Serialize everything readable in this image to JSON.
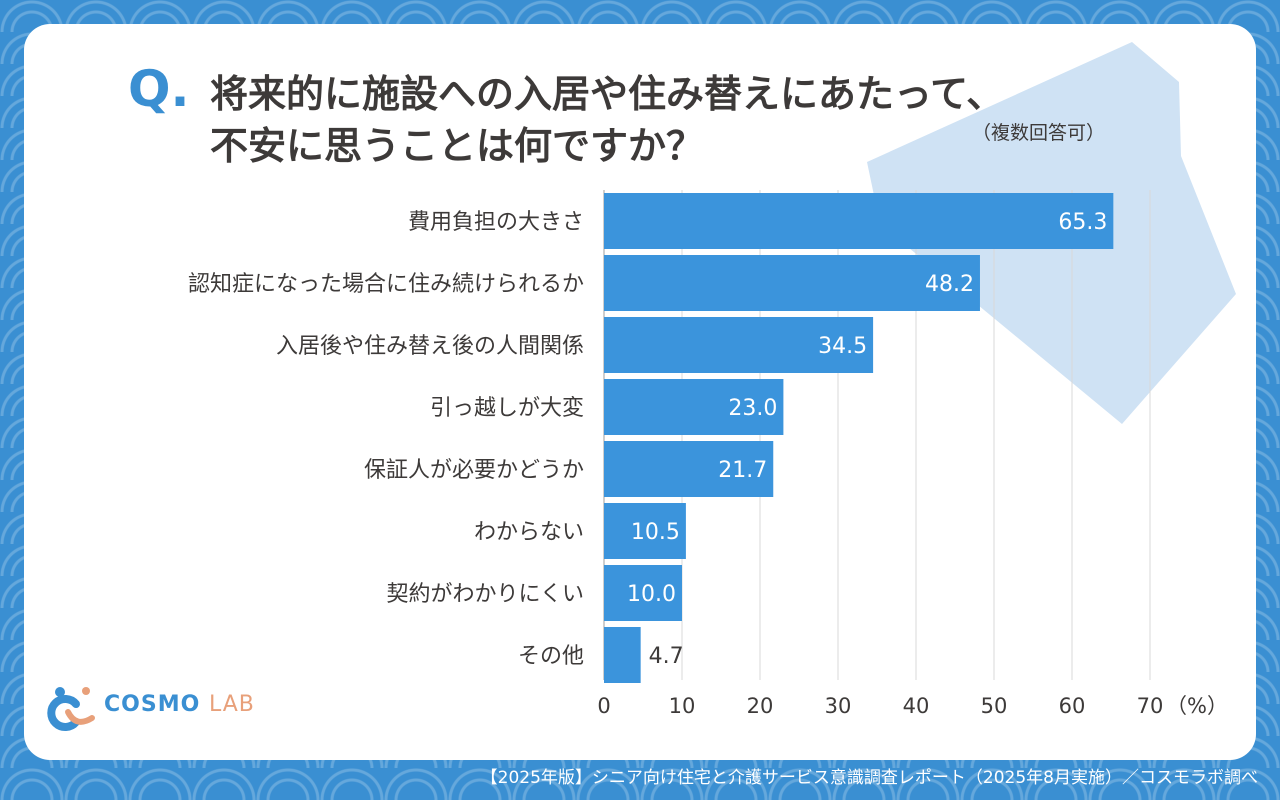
{
  "title": {
    "q_mark": "Q.",
    "line1": "将来的に施設への入居や住み替えにあたって、",
    "line2": "不安に思うことは何ですか？",
    "note": "（複数回答可）"
  },
  "chart_data": {
    "type": "bar",
    "orientation": "horizontal",
    "categories": [
      "費用負担の大きさ",
      "認知症になった場合に住み続けられるか",
      "入居後や住み替え後の人間関係",
      "引っ越しが大変",
      "保証人が必要かどうか",
      "わからない",
      "契約がわかりにくい",
      "その他"
    ],
    "values": [
      65.3,
      48.2,
      34.5,
      23.0,
      21.7,
      10.5,
      10.0,
      4.7
    ],
    "value_labels": [
      "65.3",
      "48.2",
      "34.5",
      "23.0",
      "21.7",
      "10.5",
      "10.0",
      "4.7"
    ],
    "xlim": [
      0,
      70
    ],
    "xticks": [
      "0",
      "10",
      "20",
      "30",
      "40",
      "50",
      "60",
      "70"
    ],
    "unit": "（%）",
    "grid": true
  },
  "colors": {
    "bar": "#3b94dc",
    "grid": "#d8d8d8",
    "text": "#3d3a39",
    "accent": "#3a8fd2",
    "house": "#cfe2f4"
  },
  "logo": {
    "text_main": "COSMO",
    "text_sub": "LAB"
  },
  "footer": {
    "text": "【2025年版】シニア向け住宅と介護サービス意識調査レポート（2025年8月実施）／コスモラボ調べ"
  }
}
